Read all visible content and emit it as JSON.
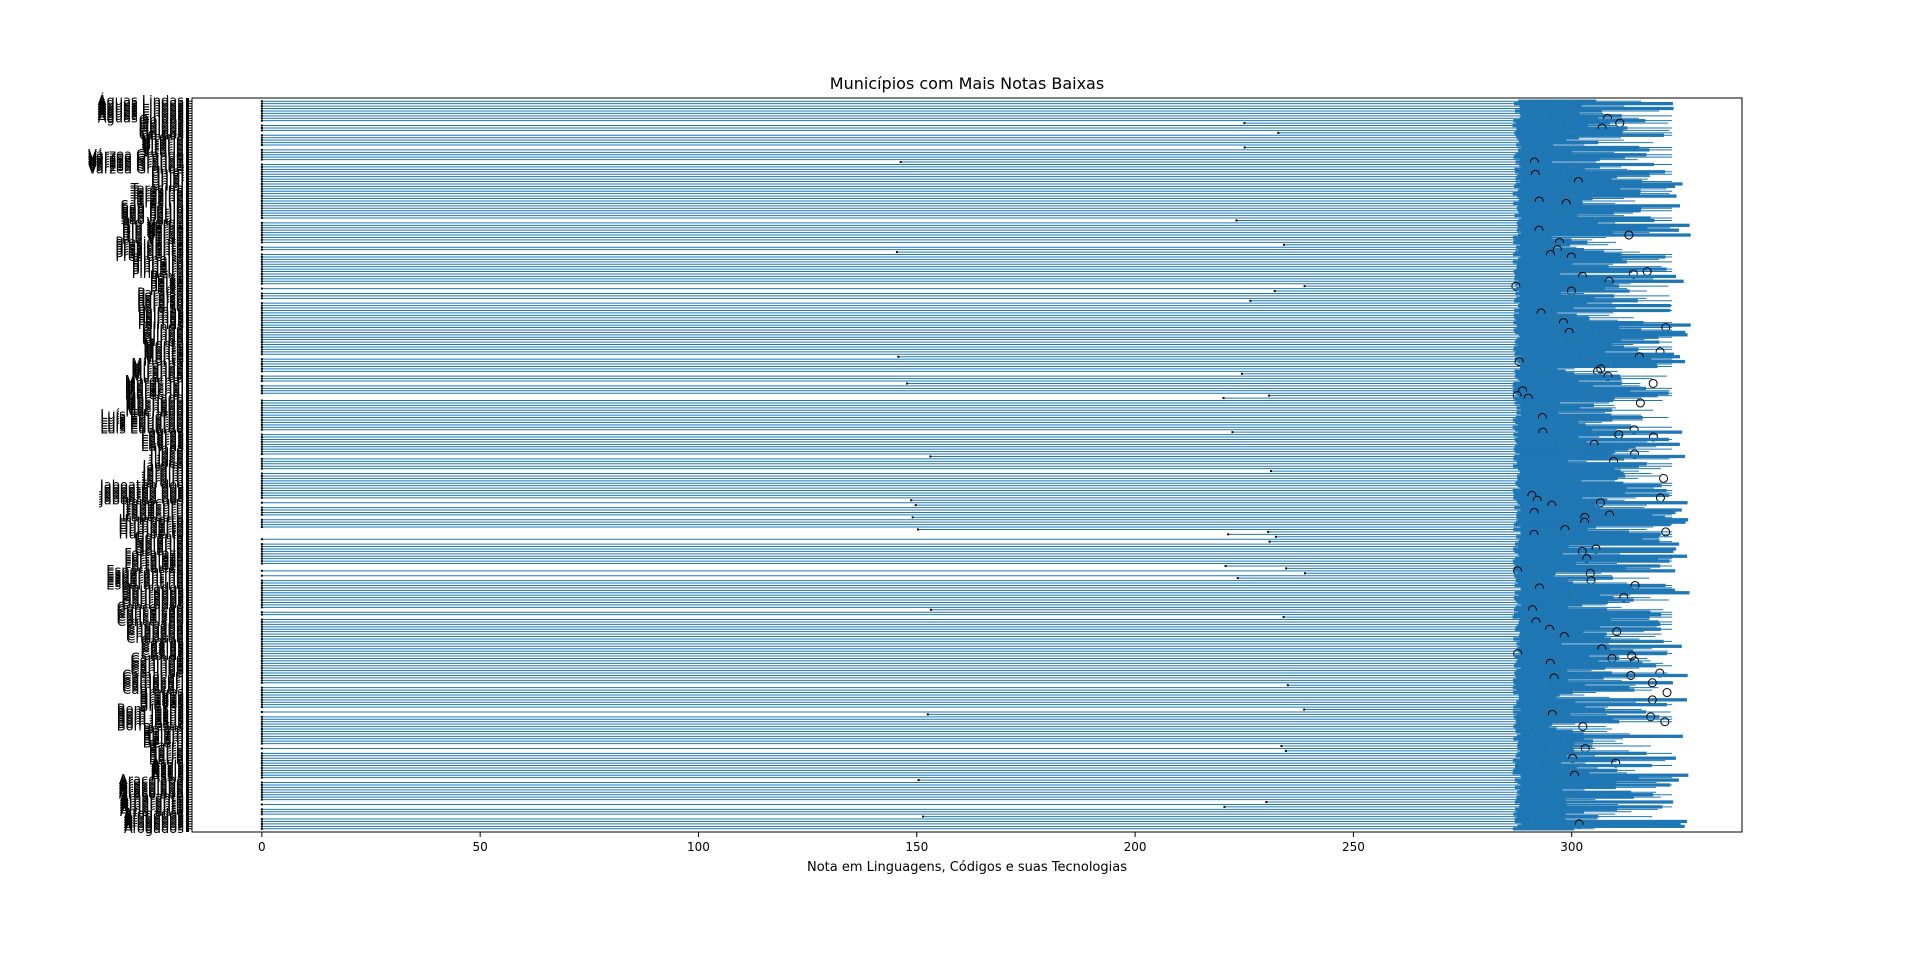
{
  "chart_data": {
    "type": "boxplot",
    "orientation": "horizontal",
    "title": "Municípios com Mais Notas Baixas",
    "xlabel": "Nota em Linguagens, Códigos e suas Tecnologias",
    "ylabel": "",
    "xlim": [
      -16,
      339
    ],
    "xticks": [
      0,
      50,
      100,
      150,
      200,
      250,
      300
    ],
    "grid": false,
    "legend": "none",
    "colors": {
      "box": "#1f77b4",
      "axis": "#000000",
      "outlier": "#000000"
    },
    "box_stats_typical": {
      "whisker_low": 0,
      "q1": 287.5,
      "median": 298,
      "q3": 310,
      "whisker_high": 322
    },
    "visible_category_labels": [
      "Águas Lindas",
      "Óbidos",
      "Vitória",
      "Várzea Grande",
      "Uniaí",
      "Teresina",
      "São Paulo",
      "Rio Verde",
      "Presidente",
      "Pinheiro",
      "Peixe",
      "Paraíso",
      "Palmas",
      "Olinda",
      "Monte",
      "Miranda",
      "Marechal",
      "Machado",
      "Luís Eduardo",
      "Lavras",
      "Jijoca",
      "Jardim",
      "Jaboatão dos",
      "Itapecuru",
      "Humberto",
      "Goiânia",
      "Fortaleza",
      "Esperantina",
      "Dourados",
      "Conceição",
      "Chapada",
      "Caxias",
      "Canindé",
      "Camaçari",
      "Breves",
      "Bom Jesus",
      "Belém",
      "Barra",
      "Assis",
      "Araçoiaba",
      "Amarante",
      "Afogados"
    ]
  }
}
